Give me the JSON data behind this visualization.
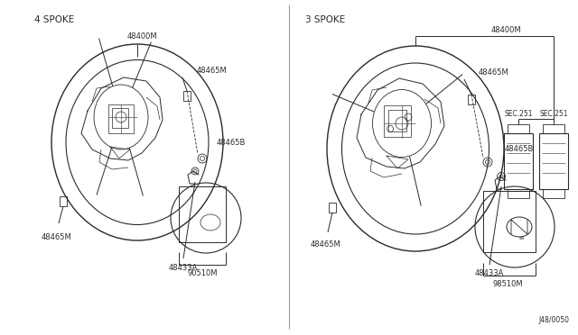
{
  "bg_color": "#ffffff",
  "line_color": "#2a2a2a",
  "text_color": "#2a2a2a",
  "left_label": "4 SPOKE",
  "right_label": "3 SPOKE",
  "diagram_id": "J48/0050"
}
